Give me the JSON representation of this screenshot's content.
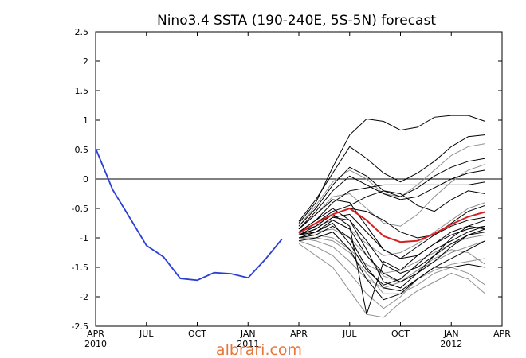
{
  "chart_data": {
    "type": "line",
    "title": "Nino3.4 SSTA (190-240E, 5S-5N) forecast",
    "x_unit": "months since APR 2010",
    "xlim": [
      0,
      24
    ],
    "ylim": [
      -2.5,
      2.5
    ],
    "y_ticks": [
      "2.5",
      "2",
      "1.5",
      "1",
      "0.5",
      "0",
      "-0.5",
      "-1",
      "-1.5",
      "-2",
      "-2.5"
    ],
    "y_tick_values": [
      2.5,
      2,
      1.5,
      1,
      0.5,
      0,
      -0.5,
      -1,
      -1.5,
      -2,
      -2.5
    ],
    "x_ticks": [
      {
        "label": "APR",
        "sub": "2010",
        "x": 0
      },
      {
        "label": "JUL",
        "sub": "",
        "x": 3
      },
      {
        "label": "OCT",
        "sub": "",
        "x": 6
      },
      {
        "label": "JAN",
        "sub": "2011",
        "x": 9
      },
      {
        "label": "APR",
        "sub": "",
        "x": 12
      },
      {
        "label": "JUL",
        "sub": "",
        "x": 15
      },
      {
        "label": "OCT",
        "sub": "",
        "x": 18
      },
      {
        "label": "JAN",
        "sub": "2012",
        "x": 21
      },
      {
        "label": "APR",
        "sub": "",
        "x": 24
      }
    ],
    "zero_line": true,
    "observed": {
      "color": "#2a3fd6",
      "x": [
        0,
        1,
        2,
        3,
        4,
        5,
        6,
        7,
        8,
        9,
        10,
        11
      ],
      "y": [
        0.52,
        -0.18,
        -0.65,
        -1.13,
        -1.32,
        -1.69,
        -1.72,
        -1.59,
        -1.61,
        -1.68,
        -1.37,
        -1.02
      ]
    },
    "ensemble_mean": {
      "color": "#d42020",
      "x": [
        12,
        13,
        14,
        15,
        16,
        17,
        18,
        19,
        20,
        21,
        22,
        23
      ],
      "y": [
        -0.92,
        -0.75,
        -0.6,
        -0.5,
        -0.7,
        -0.97,
        -1.07,
        -1.05,
        -0.93,
        -0.77,
        -0.64,
        -0.56
      ]
    },
    "members": [
      {
        "color": "#000000",
        "x": [
          12,
          13,
          14,
          15,
          16,
          17,
          18,
          19,
          20,
          21,
          22,
          23
        ],
        "y": [
          -0.75,
          -0.4,
          0.2,
          0.75,
          1.02,
          0.98,
          0.83,
          0.88,
          1.05,
          1.08,
          1.08,
          0.98
        ]
      },
      {
        "color": "#000000",
        "x": [
          12,
          13,
          14,
          15,
          16,
          17,
          18,
          19,
          20,
          21,
          22,
          23
        ],
        "y": [
          -0.72,
          -0.35,
          0.1,
          0.55,
          0.35,
          0.1,
          -0.05,
          0.1,
          0.3,
          0.55,
          0.72,
          0.75
        ]
      },
      {
        "color": "#000000",
        "x": [
          12,
          13,
          14,
          15,
          16,
          17,
          18,
          19,
          20,
          21,
          22,
          23
        ],
        "y": [
          -0.8,
          -0.5,
          -0.1,
          0.2,
          0.05,
          -0.2,
          -0.3,
          -0.15,
          0.05,
          0.2,
          0.3,
          0.35
        ]
      },
      {
        "color": "#000000",
        "x": [
          12,
          13,
          14,
          15,
          16,
          17,
          18,
          19,
          20,
          21,
          22,
          23
        ],
        "y": [
          -0.85,
          -0.55,
          -0.2,
          0.05,
          -0.1,
          -0.25,
          -0.35,
          -0.3,
          -0.15,
          0.0,
          0.1,
          0.15
        ]
      },
      {
        "color": "#000000",
        "x": [
          12,
          13,
          14,
          15,
          16,
          17,
          18,
          19,
          20,
          21,
          22,
          23
        ],
        "y": [
          -0.9,
          -0.7,
          -0.4,
          -0.2,
          -0.15,
          -0.1,
          -0.1,
          -0.1,
          -0.1,
          -0.1,
          -0.1,
          -0.05
        ]
      },
      {
        "color": "#000000",
        "x": [
          12,
          13,
          14,
          15,
          16,
          17,
          18,
          19,
          20,
          21,
          22,
          23
        ],
        "y": [
          -0.9,
          -0.75,
          -0.55,
          -0.45,
          -0.3,
          -0.2,
          -0.25,
          -0.45,
          -0.55,
          -0.35,
          -0.2,
          -0.25
        ]
      },
      {
        "color": "#000000",
        "x": [
          12,
          13,
          14,
          15,
          16,
          17,
          18,
          19,
          20,
          21,
          22,
          23
        ],
        "y": [
          -0.95,
          -0.8,
          -0.6,
          -0.5,
          -0.55,
          -0.7,
          -0.9,
          -1.0,
          -0.95,
          -0.75,
          -0.55,
          -0.45
        ]
      },
      {
        "color": "#000000",
        "x": [
          12,
          13,
          14,
          15,
          16,
          17,
          18,
          19,
          20,
          21,
          22,
          23
        ],
        "y": [
          -0.95,
          -0.85,
          -0.65,
          -0.6,
          -0.9,
          -1.2,
          -1.35,
          -1.3,
          -1.1,
          -0.9,
          -0.8,
          -0.85
        ]
      },
      {
        "color": "#000000",
        "x": [
          12,
          13,
          14,
          15,
          16,
          17,
          18,
          19,
          20,
          21,
          22,
          23
        ],
        "y": [
          -1.0,
          -0.9,
          -0.7,
          -0.85,
          -1.3,
          -1.6,
          -1.75,
          -1.6,
          -1.4,
          -1.15,
          -0.95,
          -0.85
        ]
      },
      {
        "color": "#000000",
        "x": [
          12,
          13,
          14,
          15,
          16,
          17,
          18,
          19,
          20,
          21,
          22,
          23
        ],
        "y": [
          -1.0,
          -0.95,
          -0.8,
          -1.0,
          -1.5,
          -1.85,
          -1.9,
          -1.7,
          -1.5,
          -1.35,
          -1.2,
          -1.05
        ]
      },
      {
        "color": "#000000",
        "x": [
          12,
          13,
          14,
          15,
          16,
          17,
          18,
          19,
          20,
          21,
          22,
          23
        ],
        "y": [
          -0.95,
          -0.85,
          -0.65,
          -0.7,
          -1.05,
          -1.45,
          -1.6,
          -1.5,
          -1.3,
          -1.1,
          -0.95,
          -0.9
        ]
      },
      {
        "color": "#000000",
        "x": [
          12,
          13,
          14,
          15,
          16,
          17,
          18,
          19,
          20,
          21,
          22,
          23
        ],
        "y": [
          -1.05,
          -1.0,
          -0.9,
          -1.2,
          -1.7,
          -2.05,
          -1.95,
          -1.7,
          -1.5,
          -1.5,
          -1.45,
          -1.5
        ]
      },
      {
        "color": "#000000",
        "x": [
          12,
          13,
          14,
          15,
          16,
          17,
          18,
          19,
          20,
          21,
          22,
          23
        ],
        "y": [
          -0.9,
          -0.7,
          -0.5,
          -0.7,
          -1.2,
          -1.75,
          -1.85,
          -1.6,
          -1.3,
          -1.0,
          -0.8,
          -0.7
        ]
      },
      {
        "color": "#000000",
        "x": [
          12,
          13,
          14,
          15,
          16,
          17,
          18,
          19,
          20,
          21,
          22,
          23
        ],
        "y": [
          -0.85,
          -0.6,
          -0.35,
          -0.4,
          -0.8,
          -1.2,
          -1.35,
          -1.15,
          -0.95,
          -0.8,
          -0.7,
          -0.65
        ]
      },
      {
        "color": "#000000",
        "x": [
          12,
          13,
          14,
          15,
          16,
          17,
          18,
          19,
          20,
          21,
          22,
          23
        ],
        "y": [
          -0.95,
          -0.9,
          -0.75,
          -1.1,
          -1.55,
          -1.8,
          -1.7,
          -1.45,
          -1.2,
          -1.05,
          -0.9,
          -0.8
        ]
      },
      {
        "color": "#000000",
        "x": [
          12,
          13,
          14,
          15,
          16,
          17,
          18,
          19,
          20,
          21,
          22,
          23
        ],
        "y": [
          -0.9,
          -0.8,
          -0.6,
          -0.8,
          -2.3,
          -1.4,
          -1.55,
          -1.3,
          -1.1,
          -0.95,
          -0.85,
          -0.8
        ]
      },
      {
        "color": "#909090",
        "x": [
          12,
          13,
          14,
          15,
          16,
          17,
          18,
          19,
          20,
          21,
          22,
          23
        ],
        "y": [
          -1.1,
          -1.3,
          -1.5,
          -1.9,
          -2.3,
          -2.35,
          -2.1,
          -1.9,
          -1.75,
          -1.6,
          -1.7,
          -1.95
        ]
      },
      {
        "color": "#909090",
        "x": [
          12,
          13,
          14,
          15,
          16,
          17,
          18,
          19,
          20,
          21,
          22,
          23
        ],
        "y": [
          -1.05,
          -1.15,
          -1.3,
          -1.6,
          -1.95,
          -2.2,
          -2.0,
          -1.7,
          -1.55,
          -1.45,
          -1.4,
          -1.35
        ]
      },
      {
        "color": "#909090",
        "x": [
          12,
          13,
          14,
          15,
          16,
          17,
          18,
          19,
          20,
          21,
          22,
          23
        ],
        "y": [
          -1.0,
          -1.05,
          -1.15,
          -1.4,
          -1.7,
          -1.85,
          -1.75,
          -1.55,
          -1.4,
          -1.25,
          -1.15,
          -1.05
        ]
      },
      {
        "color": "#909090",
        "x": [
          12,
          13,
          14,
          15,
          16,
          17,
          18,
          19,
          20,
          21,
          22,
          23
        ],
        "y": [
          -0.95,
          -0.95,
          -1.0,
          -1.2,
          -1.45,
          -1.6,
          -1.55,
          -1.4,
          -1.25,
          -1.1,
          -1.0,
          -0.95
        ]
      },
      {
        "color": "#909090",
        "x": [
          12,
          13,
          14,
          15,
          16,
          17,
          18,
          19,
          20,
          21,
          22,
          23
        ],
        "y": [
          -0.9,
          -0.8,
          -0.7,
          -0.85,
          -1.1,
          -1.3,
          -1.25,
          -1.1,
          -0.9,
          -0.7,
          -0.5,
          -0.4
        ]
      },
      {
        "color": "#909090",
        "x": [
          12,
          13,
          14,
          15,
          16,
          17,
          18,
          19,
          20,
          21,
          22,
          23
        ],
        "y": [
          -0.85,
          -0.6,
          -0.3,
          -0.25,
          -0.5,
          -0.75,
          -0.8,
          -0.6,
          -0.3,
          -0.05,
          0.15,
          0.25
        ]
      },
      {
        "color": "#909090",
        "x": [
          12,
          13,
          14,
          15,
          16,
          17,
          18,
          19,
          20,
          21,
          22,
          23
        ],
        "y": [
          -0.8,
          -0.45,
          -0.05,
          0.15,
          0.0,
          -0.25,
          -0.3,
          -0.1,
          0.15,
          0.4,
          0.55,
          0.6
        ]
      },
      {
        "color": "#909090",
        "x": [
          12,
          13,
          14,
          15,
          16,
          17,
          18,
          19,
          20,
          21,
          22,
          23
        ],
        "y": [
          -0.95,
          -0.9,
          -0.85,
          -1.0,
          -1.3,
          -1.65,
          -1.75,
          -1.55,
          -1.35,
          -1.2,
          -1.25,
          -1.45
        ]
      },
      {
        "color": "#909090",
        "x": [
          12,
          13,
          14,
          15,
          16,
          17,
          18,
          19,
          20,
          21,
          22,
          23
        ],
        "y": [
          -1.0,
          -1.0,
          -1.05,
          -1.25,
          -1.6,
          -1.95,
          -1.95,
          -1.8,
          -1.6,
          -1.5,
          -1.6,
          -1.8
        ]
      }
    ]
  },
  "watermark": "albrari.com"
}
